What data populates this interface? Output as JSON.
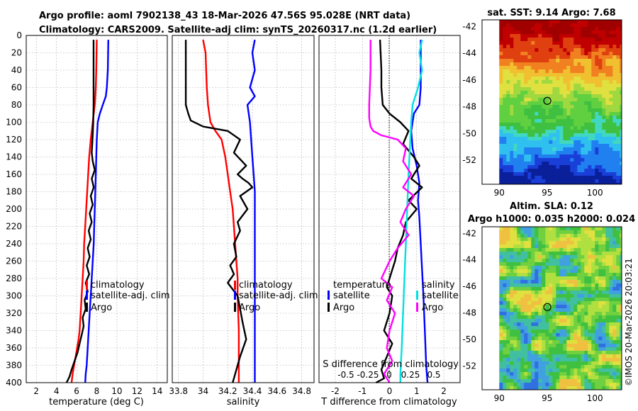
{
  "header": {
    "line1": "Argo profile: aoml 7902138_43 18-Mar-2026 47.56S 95.028E (NRT data)",
    "line2": "Climatology: CARS2009. Satellite-adj clim: synTS_20260317.nc (1.2d earlier)"
  },
  "credit": "©IMOS 20-Mar-2026 20:03:21",
  "colors": {
    "red": "#ff0000",
    "blue": "#0000ff",
    "black": "#000000",
    "magenta": "#ff00ff",
    "cyan": "#00e0e0"
  },
  "chart_data": [
    {
      "id": "temperature",
      "type": "line",
      "xlabel": "temperature (deg C)",
      "xlim": [
        1,
        15
      ],
      "xticks": [
        2,
        4,
        6,
        8,
        10,
        12,
        14
      ],
      "ylim": [
        0,
        400
      ],
      "yticks": [
        0,
        20,
        40,
        60,
        80,
        100,
        120,
        140,
        160,
        180,
        200,
        220,
        240,
        260,
        280,
        300,
        320,
        340,
        360,
        380,
        400
      ],
      "legend": [
        {
          "label": "climatology",
          "color": "#ff0000"
        },
        {
          "label": "satellite-adj. clim",
          "color": "#0000ff"
        },
        {
          "label": "Argo",
          "color": "#000000"
        }
      ],
      "series": [
        {
          "name": "climatology",
          "color": "#ff0000",
          "x": [
            8.0,
            7.95,
            7.9,
            7.8,
            7.6,
            7.4,
            7.25,
            7.15,
            7.05,
            6.95,
            6.85,
            6.75,
            6.7,
            6.6,
            6.5,
            6.4,
            6.3,
            6.2,
            6.05,
            5.9,
            5.75,
            5.6,
            5.5
          ],
          "depth": [
            5,
            40,
            60,
            80,
            100,
            120,
            140,
            160,
            180,
            200,
            220,
            240,
            260,
            280,
            300,
            320,
            340,
            350,
            360,
            370,
            380,
            390,
            400
          ]
        },
        {
          "name": "satellite-adj. clim",
          "color": "#0000ff",
          "x": [
            9.15,
            9.1,
            9.0,
            8.9,
            8.6,
            8.3,
            8.1,
            8.0,
            7.95,
            7.9,
            7.85,
            7.8,
            7.75,
            7.7,
            7.6,
            7.5,
            7.4,
            7.3,
            7.2,
            7.1,
            7.0,
            6.9,
            6.85
          ],
          "depth": [
            5,
            40,
            60,
            70,
            80,
            90,
            100,
            120,
            140,
            160,
            180,
            200,
            220,
            240,
            260,
            280,
            300,
            320,
            340,
            360,
            380,
            390,
            400
          ]
        },
        {
          "name": "Argo",
          "color": "#000000",
          "x": [
            7.68,
            7.68,
            7.68,
            7.65,
            7.6,
            7.55,
            7.5,
            7.6,
            7.8,
            7.5,
            7.7,
            7.4,
            7.6,
            7.3,
            7.5,
            7.2,
            7.4,
            7.1,
            7.3,
            7.0,
            7.25,
            6.9,
            7.1,
            6.8,
            6.9,
            6.6,
            6.7,
            6.5,
            6.3,
            6.1,
            5.8,
            5.5,
            5.3,
            5.0
          ],
          "depth": [
            5,
            40,
            80,
            100,
            115,
            125,
            135,
            145,
            155,
            165,
            175,
            185,
            195,
            205,
            215,
            225,
            235,
            245,
            255,
            265,
            275,
            285,
            295,
            305,
            315,
            325,
            335,
            345,
            355,
            365,
            375,
            385,
            393,
            400
          ]
        }
      ]
    },
    {
      "id": "salinity",
      "type": "line",
      "xlabel": "salinity",
      "xlim": [
        33.75,
        34.9
      ],
      "xticks": [
        33.8,
        34,
        34.2,
        34.4,
        34.6,
        34.8
      ],
      "ylim": [
        0,
        400
      ],
      "legend": [
        {
          "label": "climatology",
          "color": "#ff0000"
        },
        {
          "label": "satellite-adj. clim",
          "color": "#0000ff"
        },
        {
          "label": "Argo",
          "color": "#000000"
        }
      ],
      "series": [
        {
          "name": "climatology",
          "color": "#ff0000",
          "x": [
            34.0,
            34.02,
            34.03,
            34.04,
            34.06,
            34.1,
            34.15,
            34.18,
            34.2,
            34.22,
            34.24,
            34.25,
            34.26,
            34.27,
            34.28,
            34.28,
            34.29,
            34.29,
            34.29
          ],
          "depth": [
            5,
            20,
            60,
            80,
            100,
            110,
            120,
            140,
            160,
            180,
            200,
            220,
            240,
            260,
            280,
            300,
            340,
            380,
            400
          ]
        },
        {
          "name": "satellite-adj. clim",
          "color": "#0000ff",
          "x": [
            34.42,
            34.4,
            34.42,
            34.38,
            34.42,
            34.36,
            34.38,
            34.39,
            34.4,
            34.41,
            34.42,
            34.42,
            34.42,
            34.42,
            34.42,
            34.42
          ],
          "depth": [
            5,
            20,
            40,
            60,
            70,
            80,
            100,
            120,
            140,
            160,
            180,
            200,
            240,
            300,
            360,
            400
          ]
        },
        {
          "name": "Argo",
          "color": "#000000",
          "x": [
            33.86,
            33.86,
            33.86,
            33.86,
            33.88,
            33.9,
            34.0,
            34.2,
            34.3,
            34.25,
            34.35,
            34.28,
            34.32,
            34.37,
            34.4,
            34.3,
            34.36,
            34.28,
            34.3,
            34.25,
            34.27,
            34.22,
            34.25,
            34.2,
            34.28,
            34.3,
            34.32,
            34.35,
            34.3,
            34.28,
            34.25,
            34.24
          ],
          "depth": [
            5,
            40,
            70,
            80,
            90,
            98,
            105,
            110,
            120,
            135,
            150,
            160,
            165,
            170,
            175,
            185,
            200,
            215,
            225,
            240,
            255,
            265,
            275,
            285,
            300,
            315,
            330,
            350,
            370,
            380,
            395,
            400
          ]
        }
      ]
    },
    {
      "id": "difference",
      "type": "line",
      "xlabel": "T difference from climatology",
      "xlim": [
        -2.6,
        2.6
      ],
      "xticks": [
        -2,
        -1,
        0,
        1,
        2
      ],
      "top_label": "S difference from climatology",
      "s_ticks": [
        "-0.5",
        "-0.25",
        "0",
        "0.25",
        "0.5"
      ],
      "ylim": [
        0,
        400
      ],
      "legend_left_title": "temperature",
      "legend_right_title": "salinity",
      "legend_left": [
        {
          "label": "satellite",
          "color": "#0000ff"
        },
        {
          "label": "Argo",
          "color": "#000000"
        }
      ],
      "legend_right": [
        {
          "label": "satellite",
          "color": "#00e0e0"
        },
        {
          "label": "Argo",
          "color": "#ff00ff"
        }
      ],
      "series": [
        {
          "name": "T satellite",
          "color": "#0000ff",
          "x": [
            1.15,
            1.15,
            1.15,
            1.1,
            0.9,
            0.85,
            0.8,
            0.85,
            1.0,
            1.1,
            1.05,
            1.1,
            1.15,
            1.2,
            1.25,
            1.3,
            1.35,
            1.4
          ],
          "depth": [
            5,
            40,
            60,
            80,
            90,
            100,
            110,
            130,
            150,
            170,
            190,
            210,
            240,
            270,
            300,
            340,
            380,
            400
          ]
        },
        {
          "name": "T Argo",
          "color": "#000000",
          "x": [
            -0.35,
            -0.3,
            -0.3,
            -0.25,
            0.0,
            0.4,
            0.7,
            0.5,
            0.9,
            1.1,
            0.8,
            1.2,
            0.7,
            1.0,
            0.6,
            0.5,
            0.3,
            0.2,
            0.1,
            0.0,
            -0.1,
            0.1,
            0.0,
            -0.2,
            0.1,
            -0.1,
            -0.3,
            -0.2,
            -0.5
          ],
          "depth": [
            5,
            40,
            60,
            80,
            90,
            100,
            110,
            125,
            140,
            150,
            165,
            175,
            190,
            200,
            215,
            230,
            245,
            260,
            270,
            280,
            290,
            300,
            320,
            340,
            355,
            370,
            385,
            395,
            400
          ]
        },
        {
          "name": "S satellite",
          "color": "#00e0e0",
          "x": [
            1.2,
            1.1,
            1.2,
            1.05,
            0.85,
            0.8,
            0.75,
            0.7,
            0.65,
            0.6,
            0.55,
            0.5,
            0.45,
            0.4,
            0.4
          ],
          "depth": [
            5,
            20,
            40,
            60,
            80,
            100,
            130,
            160,
            200,
            240,
            280,
            320,
            360,
            390,
            400
          ]
        },
        {
          "name": "S Argo",
          "color": "#ff00ff",
          "x": [
            -0.7,
            -0.7,
            -0.75,
            -0.75,
            -0.7,
            -0.6,
            -0.3,
            0.3,
            0.6,
            0.5,
            0.8,
            0.5,
            0.9,
            0.6,
            0.4,
            0.7,
            0.3,
            0.0,
            -0.3,
            0.1,
            -0.1,
            0.2,
            0.0,
            -0.1,
            0.1,
            -0.2,
            0.0
          ],
          "depth": [
            5,
            40,
            80,
            95,
            105,
            110,
            115,
            120,
            130,
            145,
            160,
            175,
            185,
            200,
            215,
            230,
            245,
            260,
            280,
            290,
            305,
            320,
            340,
            360,
            375,
            390,
            400
          ]
        }
      ]
    }
  ],
  "maps": [
    {
      "id": "sst-map",
      "title": "sat. SST: 9.14 Argo: 7.68",
      "lat_ticks": [
        -42,
        -44,
        -46,
        -48,
        -50,
        -52
      ],
      "lon_ticks": [
        90,
        95,
        100
      ],
      "lat_range": [
        -41.5,
        -53.8
      ],
      "lon_range": [
        88.2,
        102.8
      ],
      "marker": {
        "lon": 95.028,
        "lat": -47.56
      },
      "palette": [
        "#0a1f9a",
        "#1a3fd8",
        "#2080f0",
        "#30c0f0",
        "#40d8c0",
        "#40c040",
        "#60d040",
        "#a0d840",
        "#e0e040",
        "#f0c030",
        "#f08020",
        "#e04010",
        "#c00000",
        "#a00000"
      ]
    },
    {
      "id": "sla-map",
      "title1": "Altim. SLA: 0.12",
      "title2": "Argo h1000: 0.035 h2000: 0.024",
      "lat_ticks": [
        -42,
        -44,
        -46,
        -48,
        -50,
        -52
      ],
      "lon_ticks": [
        90,
        95,
        100
      ],
      "lat_range": [
        -41.5,
        -53.8
      ],
      "lon_range": [
        88.2,
        102.8
      ],
      "marker": {
        "lon": 95.028,
        "lat": -47.56
      },
      "palette": [
        "#3070e0",
        "#40a0e0",
        "#40c0a0",
        "#40c040",
        "#70d040",
        "#b0e040",
        "#e0e040",
        "#f0c040"
      ]
    }
  ]
}
